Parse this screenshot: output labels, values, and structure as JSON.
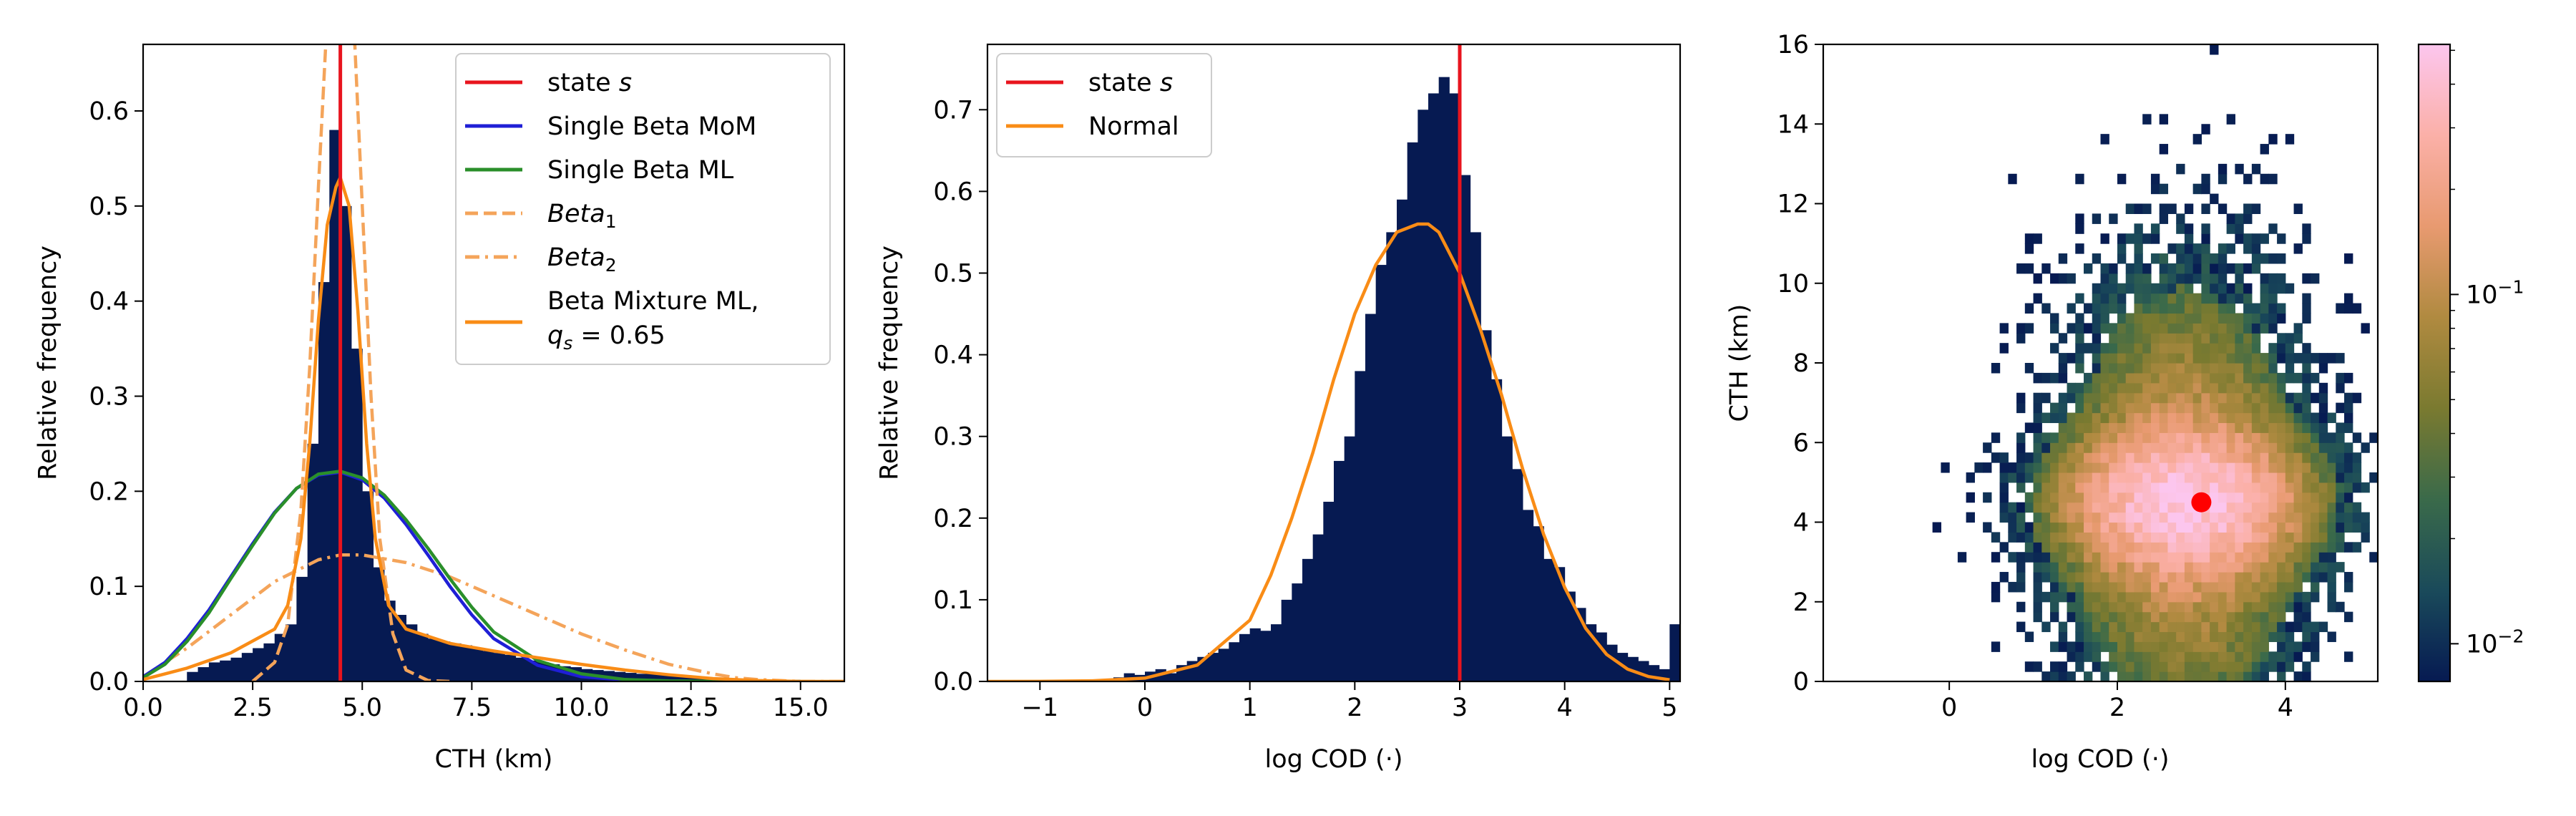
{
  "chart_data": [
    {
      "type": "histogram",
      "xlabel": "CTH (km)",
      "ylabel": "Relative frequency",
      "xlim": [
        0,
        16
      ],
      "ylim": [
        0,
        0.67
      ],
      "xticks": [
        0,
        2.5,
        5,
        7.5,
        10,
        12.5,
        15
      ],
      "xtick_labels": [
        "0.0",
        "2.5",
        "5.0",
        "7.5",
        "10.0",
        "12.5",
        "15.0"
      ],
      "yticks": [
        0,
        0.1,
        0.2,
        0.3,
        0.4,
        0.5,
        0.6
      ],
      "ytick_labels": [
        "0.0",
        "0.1",
        "0.2",
        "0.3",
        "0.4",
        "0.5",
        "0.6"
      ],
      "state_line_x": 4.5,
      "histogram": {
        "bin_width": 0.25,
        "bin_left": [
          1.0,
          1.25,
          1.5,
          1.75,
          2.0,
          2.25,
          2.5,
          2.75,
          3.0,
          3.25,
          3.5,
          3.75,
          4.0,
          4.25,
          4.5,
          4.75,
          5.0,
          5.25,
          5.5,
          5.75,
          6.0,
          6.25,
          6.5,
          6.75,
          7.0,
          7.25,
          7.5,
          7.75,
          8.0,
          8.25,
          8.5,
          8.75,
          9.0,
          9.25,
          9.5,
          9.75,
          10.0,
          10.25,
          10.5,
          10.75,
          11.0,
          11.25,
          11.5,
          11.75,
          12.0,
          12.25,
          12.5,
          12.75,
          13.0
        ],
        "values": [
          0.01,
          0.015,
          0.02,
          0.022,
          0.025,
          0.03,
          0.035,
          0.04,
          0.05,
          0.06,
          0.11,
          0.25,
          0.42,
          0.58,
          0.5,
          0.35,
          0.2,
          0.12,
          0.085,
          0.07,
          0.06,
          0.05,
          0.045,
          0.042,
          0.04,
          0.038,
          0.035,
          0.032,
          0.03,
          0.028,
          0.025,
          0.022,
          0.02,
          0.018,
          0.016,
          0.015,
          0.013,
          0.012,
          0.011,
          0.01,
          0.009,
          0.008,
          0.008,
          0.007,
          0.006,
          0.005,
          0.004,
          0.003,
          0.002
        ]
      },
      "legend": {
        "position": "top-right",
        "entries": [
          {
            "label": "state s",
            "color": "#e8141e",
            "style": "solid"
          },
          {
            "label": "Single Beta MoM",
            "color": "#1f1fd6",
            "style": "solid"
          },
          {
            "label": "Single Beta ML",
            "color": "#2a8f2a",
            "style": "solid"
          },
          {
            "label": "Beta1",
            "color": "#f4a45a",
            "style": "dashed"
          },
          {
            "label": "Beta2",
            "color": "#f4a45a",
            "style": "dashdot"
          },
          {
            "label": "Beta Mixture ML, qs = 0.65",
            "color": "#f98c16",
            "style": "solid"
          }
        ]
      },
      "legend_labels": {
        "state": "state",
        "state_italic": "s",
        "mom": "Single Beta MoM",
        "ml": "Single Beta ML",
        "beta": "Beta",
        "beta1_sub": "1",
        "beta2_sub": "2",
        "mixture_line1": "Beta Mixture ML,",
        "mixture_q": "q",
        "mixture_sub": "s",
        "mixture_value": " = 0.65"
      },
      "curves": {
        "single_beta_mom": {
          "x": [
            0,
            0.5,
            1,
            1.5,
            2,
            2.5,
            3,
            3.5,
            4,
            4.5,
            5,
            5.5,
            6,
            6.5,
            7,
            7.5,
            8,
            9,
            10,
            11,
            12,
            13,
            14,
            15
          ],
          "y": [
            0.005,
            0.02,
            0.045,
            0.075,
            0.11,
            0.145,
            0.178,
            0.203,
            0.217,
            0.22,
            0.212,
            0.193,
            0.165,
            0.133,
            0.1,
            0.07,
            0.045,
            0.017,
            0.005,
            0.0015,
            0.0004,
            0.0001,
            0,
            0
          ]
        },
        "single_beta_ml": {
          "x": [
            0,
            0.5,
            1,
            1.5,
            2,
            2.5,
            3,
            3.5,
            4,
            4.5,
            5,
            5.5,
            6,
            6.5,
            7,
            7.5,
            8,
            9,
            10,
            11,
            12,
            13,
            14,
            15
          ],
          "y": [
            0.004,
            0.018,
            0.042,
            0.072,
            0.108,
            0.143,
            0.177,
            0.203,
            0.218,
            0.221,
            0.214,
            0.196,
            0.17,
            0.14,
            0.108,
            0.078,
            0.052,
            0.022,
            0.008,
            0.002,
            0.0005,
            0.0001,
            0,
            0
          ]
        },
        "beta1": {
          "x": [
            2.5,
            3.0,
            3.3,
            3.6,
            3.8,
            4.0,
            4.2,
            4.4,
            4.5,
            4.7,
            4.8,
            5.0,
            5.2,
            5.4,
            5.7,
            6.0,
            6.5,
            7.0
          ],
          "y": [
            0.0,
            0.02,
            0.06,
            0.18,
            0.33,
            0.52,
            0.7,
            0.8,
            0.82,
            0.78,
            0.7,
            0.5,
            0.3,
            0.15,
            0.05,
            0.012,
            0.001,
            0.0
          ]
        },
        "beta2": {
          "x": [
            0,
            0.5,
            1,
            2,
            3,
            4,
            4.5,
            5,
            6,
            7,
            8,
            9,
            10,
            11,
            12,
            13,
            13.5,
            14,
            15,
            16
          ],
          "y": [
            0.005,
            0.02,
            0.035,
            0.07,
            0.105,
            0.128,
            0.133,
            0.133,
            0.125,
            0.11,
            0.09,
            0.07,
            0.05,
            0.033,
            0.018,
            0.008,
            0.004,
            0.002,
            0.0,
            0.0
          ]
        },
        "mixture": {
          "x": [
            0,
            0.5,
            1,
            2,
            3.0,
            3.3,
            3.6,
            3.8,
            4.0,
            4.2,
            4.4,
            4.5,
            4.7,
            4.9,
            5.1,
            5.3,
            5.6,
            6,
            7,
            8,
            9,
            10,
            11,
            12,
            13,
            14,
            15,
            16
          ],
          "y": [
            0.002,
            0.008,
            0.014,
            0.03,
            0.055,
            0.08,
            0.15,
            0.25,
            0.38,
            0.48,
            0.52,
            0.53,
            0.5,
            0.39,
            0.25,
            0.15,
            0.08,
            0.055,
            0.04,
            0.032,
            0.025,
            0.018,
            0.012,
            0.007,
            0.003,
            0.001,
            0.0,
            0.0
          ]
        }
      }
    },
    {
      "type": "histogram",
      "xlabel": "log COD (·)",
      "ylabel": "Relative frequency",
      "xlim": [
        -1.5,
        5.1
      ],
      "ylim": [
        0,
        0.78
      ],
      "xticks": [
        -1,
        0,
        1,
        2,
        3,
        4,
        5
      ],
      "xtick_labels": [
        "−1",
        "0",
        "1",
        "2",
        "3",
        "4",
        "5"
      ],
      "yticks": [
        0,
        0.1,
        0.2,
        0.3,
        0.4,
        0.5,
        0.6,
        0.7
      ],
      "ytick_labels": [
        "0.0",
        "0.1",
        "0.2",
        "0.3",
        "0.4",
        "0.5",
        "0.6",
        "0.7"
      ],
      "state_line_x": 3.0,
      "histogram": {
        "bin_width": 0.1,
        "bin_left": [
          -0.3,
          -0.2,
          -0.1,
          0.0,
          0.1,
          0.2,
          0.3,
          0.4,
          0.5,
          0.6,
          0.7,
          0.8,
          0.9,
          1.0,
          1.1,
          1.2,
          1.3,
          1.4,
          1.5,
          1.6,
          1.7,
          1.8,
          1.9,
          2.0,
          2.1,
          2.2,
          2.3,
          2.4,
          2.5,
          2.6,
          2.7,
          2.8,
          2.9,
          3.0,
          3.1,
          3.2,
          3.3,
          3.4,
          3.5,
          3.6,
          3.7,
          3.8,
          3.9,
          4.0,
          4.1,
          4.2,
          4.3,
          4.4,
          4.5,
          4.6,
          4.7,
          4.8,
          4.9,
          5.0
        ],
        "values": [
          0.005,
          0.01,
          0.008,
          0.012,
          0.015,
          0.01,
          0.02,
          0.025,
          0.03,
          0.035,
          0.04,
          0.048,
          0.058,
          0.065,
          0.062,
          0.07,
          0.1,
          0.12,
          0.15,
          0.18,
          0.22,
          0.27,
          0.3,
          0.38,
          0.45,
          0.51,
          0.55,
          0.59,
          0.66,
          0.7,
          0.72,
          0.74,
          0.72,
          0.62,
          0.55,
          0.43,
          0.37,
          0.3,
          0.26,
          0.21,
          0.19,
          0.15,
          0.14,
          0.11,
          0.09,
          0.07,
          0.06,
          0.045,
          0.035,
          0.03,
          0.025,
          0.02,
          0.015,
          0.07
        ]
      },
      "legend": {
        "position": "top-left",
        "entries": [
          {
            "label": "state s",
            "color": "#e8141e",
            "style": "solid"
          },
          {
            "label": "Normal",
            "color": "#f98c16",
            "style": "solid"
          }
        ]
      },
      "legend_labels": {
        "state": "state",
        "state_italic": "s",
        "normal": "Normal"
      },
      "curves": {
        "normal": {
          "x": [
            -1.5,
            -1,
            -0.5,
            0,
            0.5,
            1.0,
            1.2,
            1.4,
            1.6,
            1.8,
            2.0,
            2.2,
            2.4,
            2.6,
            2.7,
            2.8,
            3.0,
            3.2,
            3.4,
            3.6,
            3.8,
            4.0,
            4.2,
            4.4,
            4.6,
            4.8,
            5.0
          ],
          "y": [
            0,
            0.0001,
            0.0008,
            0.004,
            0.02,
            0.075,
            0.13,
            0.2,
            0.28,
            0.37,
            0.45,
            0.51,
            0.55,
            0.56,
            0.56,
            0.55,
            0.5,
            0.43,
            0.35,
            0.26,
            0.18,
            0.115,
            0.065,
            0.033,
            0.015,
            0.006,
            0.002
          ]
        }
      }
    },
    {
      "type": "heatmap",
      "xlabel": "log COD (·)",
      "ylabel": "CTH (km)",
      "xlim": [
        -1.5,
        5.1
      ],
      "ylim": [
        0,
        16
      ],
      "xticks": [
        0,
        2,
        4
      ],
      "xtick_labels": [
        "0",
        "2",
        "4"
      ],
      "yticks": [
        0,
        2,
        4,
        6,
        8,
        10,
        12,
        14,
        16
      ],
      "ytick_labels": [
        "0",
        "2",
        "4",
        "6",
        "8",
        "10",
        "12",
        "14",
        "16"
      ],
      "center_point": {
        "x": 3.0,
        "y": 4.5,
        "color": "#ff0000"
      },
      "density_model": {
        "x_mean": 2.8,
        "x_sd": 0.78,
        "y_mean": 4.5,
        "y_sd_inner": 1.0,
        "y_sd_outer": 3.2,
        "peak": 0.5,
        "min_shown": 0.0078
      },
      "colorbar": {
        "scale": "log",
        "range": [
          0.0078,
          0.52
        ],
        "tick_labels": [
          {
            "value": 0.1,
            "base": "10",
            "exp": "−1"
          },
          {
            "value": 0.01,
            "base": "10",
            "exp": "−2"
          }
        ],
        "colors": [
          "#061a52",
          "#1a4a5a",
          "#3a6a4a",
          "#7a7a30",
          "#b08a40",
          "#e89a70",
          "#fbb0a8",
          "#fcc6ee"
        ]
      }
    }
  ]
}
